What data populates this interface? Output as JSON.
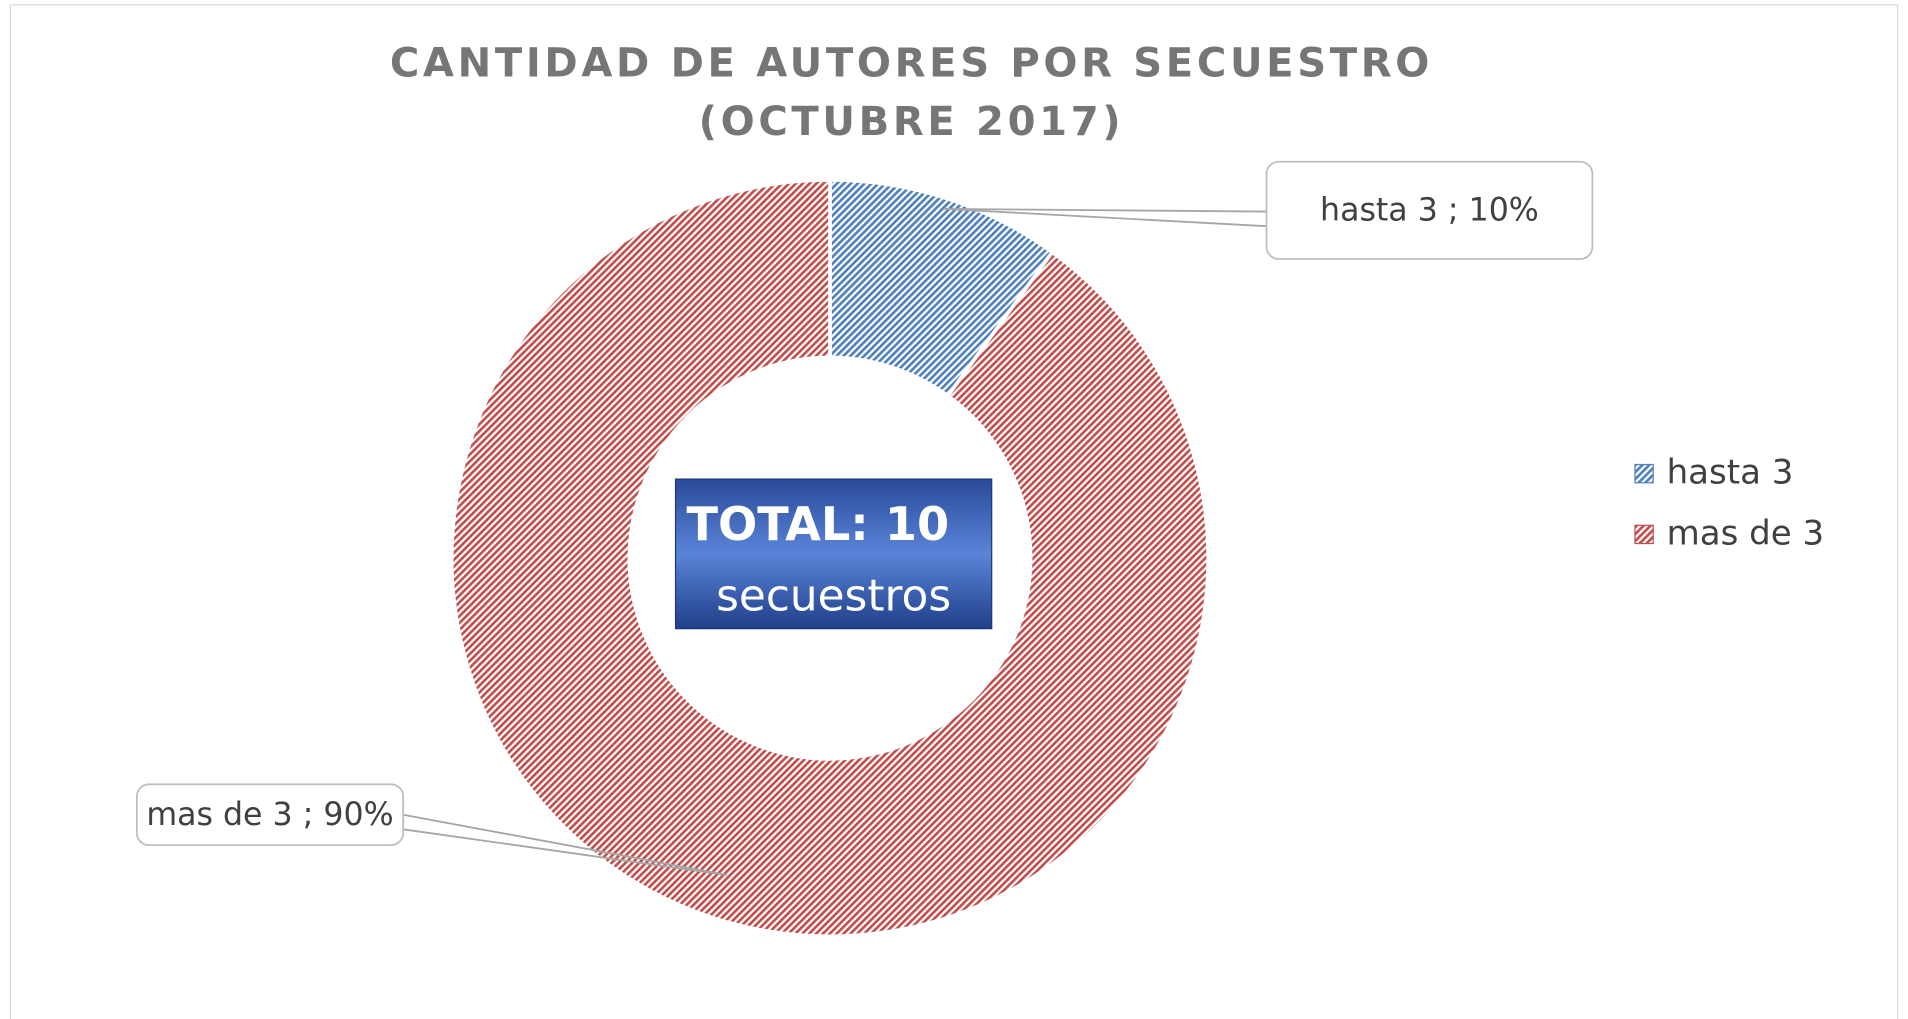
{
  "chart_data": {
    "type": "donut",
    "title": [
      "CANTIDAD DE AUTORES POR SECUESTRO",
      "(OCTUBRE 2017)"
    ],
    "categories": [
      "hasta 3",
      "mas de 3"
    ],
    "values": [
      10,
      90
    ],
    "value_labels": [
      "hasta 3 ; 10%",
      "mas de 3 ; 90%"
    ],
    "colors": [
      "#4f81bd",
      "#c0504d"
    ],
    "annotation": [
      "TOTAL: 10",
      "secuestros"
    ],
    "legend": "right"
  }
}
